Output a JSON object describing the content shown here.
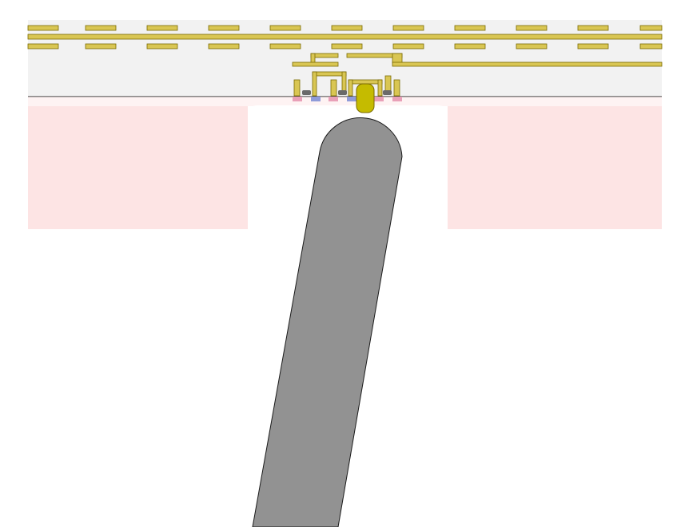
{
  "colors": {
    "background": "#ffffff",
    "chip_layer": "#f2f2f2",
    "substrate_tint": "#fde4e4",
    "metal_trace": "#d9c653",
    "metal_stroke": "#7a6a00",
    "contact_pad": "#c5bb00",
    "probe_tip": "#929292",
    "probe_outline": "#1a1a1a",
    "interface_line": "#1a1a1a",
    "small_contact": "#6a6a6a",
    "implant_blue": "#8f9bd9",
    "implant_pink": "#e9a0b8"
  },
  "icons": {
    "probe": "probe-tip-icon",
    "pad": "contact-pad-icon"
  }
}
